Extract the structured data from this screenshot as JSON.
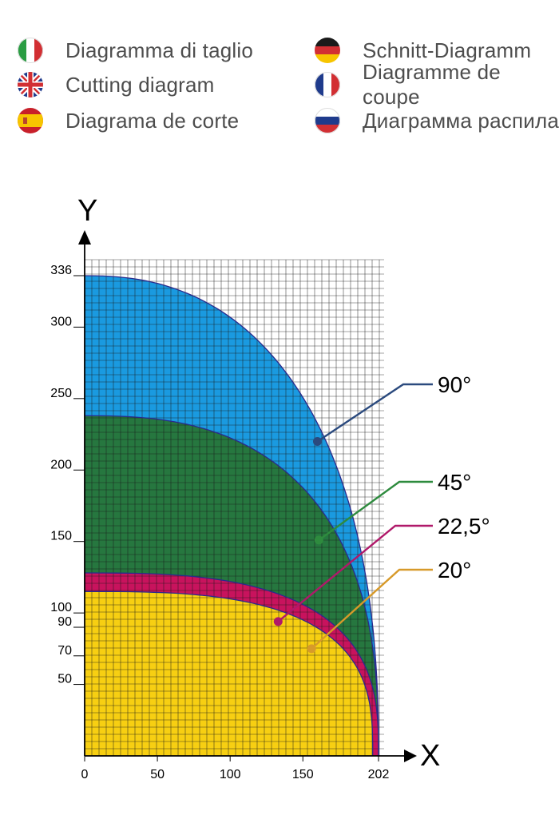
{
  "legend": {
    "items": [
      {
        "lang": "it",
        "flag_icon": "italy-flag-icon",
        "label": "Diagramma di taglio"
      },
      {
        "lang": "en",
        "flag_icon": "uk-flag-icon",
        "label": "Cutting diagram"
      },
      {
        "lang": "es",
        "flag_icon": "spain-flag-icon",
        "label": "Diagrama de corte"
      },
      {
        "lang": "de",
        "flag_icon": "germany-flag-icon",
        "label": "Schnitt-Diagramm"
      },
      {
        "lang": "fr",
        "flag_icon": "france-flag-icon",
        "label": "Diagramme de coupe"
      },
      {
        "lang": "ru",
        "flag_icon": "russia-flag-icon",
        "label": "Диаграмма распила"
      }
    ]
  },
  "chart_data": {
    "type": "area",
    "x_axis_label": "X",
    "y_axis_label": "Y",
    "xlim": [
      0,
      210
    ],
    "ylim": [
      0,
      336
    ],
    "x_ticks": [
      0,
      50,
      100,
      150,
      202
    ],
    "x_tick_labels": [
      "0",
      "50",
      "100",
      "150",
      "202"
    ],
    "y_ticks": [
      50,
      70,
      90,
      100,
      150,
      200,
      250,
      300,
      336
    ],
    "y_tick_labels": [
      "50",
      "70",
      "90",
      "100",
      "150",
      "200",
      "250",
      "300",
      "336"
    ],
    "grid": true,
    "colors": {
      "90": "#1a9ae0",
      "45": "#26773f",
      "22.5": "#c8135d",
      "20": "#f7cf12",
      "grid": "#1a1a1a",
      "outline": "#2a2a8c",
      "leader_90": "#2b4a7e",
      "leader_45": "#2e8b3e",
      "leader_22_5": "#b0196a",
      "leader_20": "#d79a2a"
    },
    "series": [
      {
        "name": "90°",
        "max_x": 202,
        "max_y": 336,
        "marker": [
          160,
          220
        ],
        "fill": "#1a9ae0"
      },
      {
        "name": "45°",
        "max_x": 202,
        "max_y": 238,
        "marker": [
          161,
          151
        ],
        "fill": "#26773f"
      },
      {
        "name": "22,5°",
        "max_x": 202,
        "max_y": 128,
        "marker": [
          133,
          94
        ],
        "fill": "#c8135d"
      },
      {
        "name": "20°",
        "max_x": 198,
        "max_y": 115,
        "marker": [
          156,
          75
        ],
        "fill": "#f7cf12"
      }
    ]
  }
}
